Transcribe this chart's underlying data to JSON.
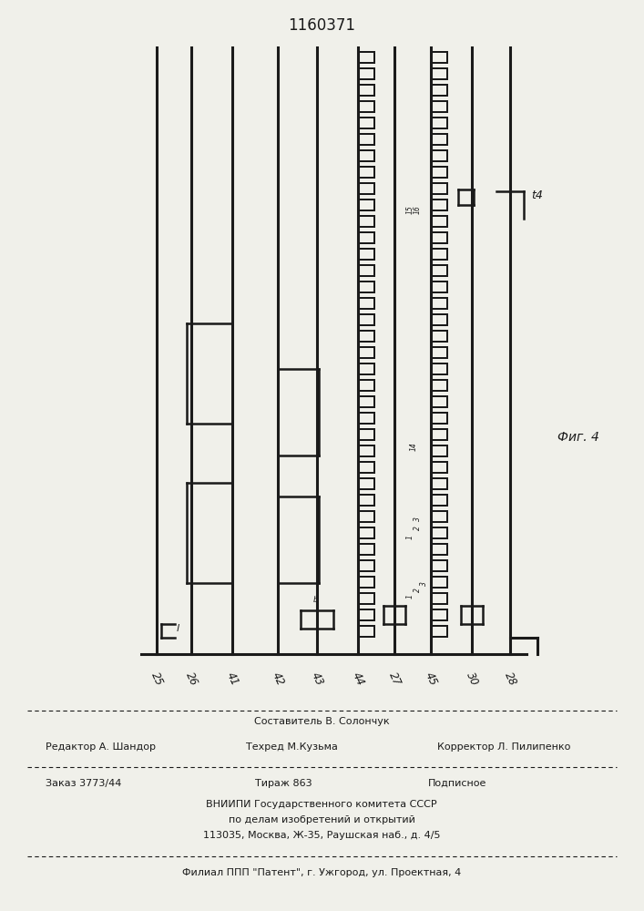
{
  "title": "1160371",
  "fig_label": "Фиг. 4",
  "background_color": "#f0f0ea",
  "line_color": "#1a1a1a",
  "bottom_labels": [
    "25",
    "26",
    "41",
    "42",
    "43",
    "44",
    "27",
    "45",
    "30",
    "28"
  ],
  "footer_line1": "Составитель В. Солончук",
  "footer_line2_left": "Редактор А. Шандор",
  "footer_line2_mid": "Техред М.Кузьма",
  "footer_line2_right": "Корректор Л. Пилипенко",
  "footer_line3_left": "Заказ 3773/44",
  "footer_line3_mid": "Тираж 863",
  "footer_line3_right": "Подписное",
  "footer_line4": "ВНИИПИ Государственного комитета СССР",
  "footer_line5": "по делам изобретений и открытий",
  "footer_line6": "113035, Москва, Ж-35, Раушская наб., д. 4/5",
  "footer_line7": "Филиал ППП \"Патент\", г. Ужгород, ул. Проектная, 4",
  "annotation_t4": "t4",
  "annotation_l": "l"
}
